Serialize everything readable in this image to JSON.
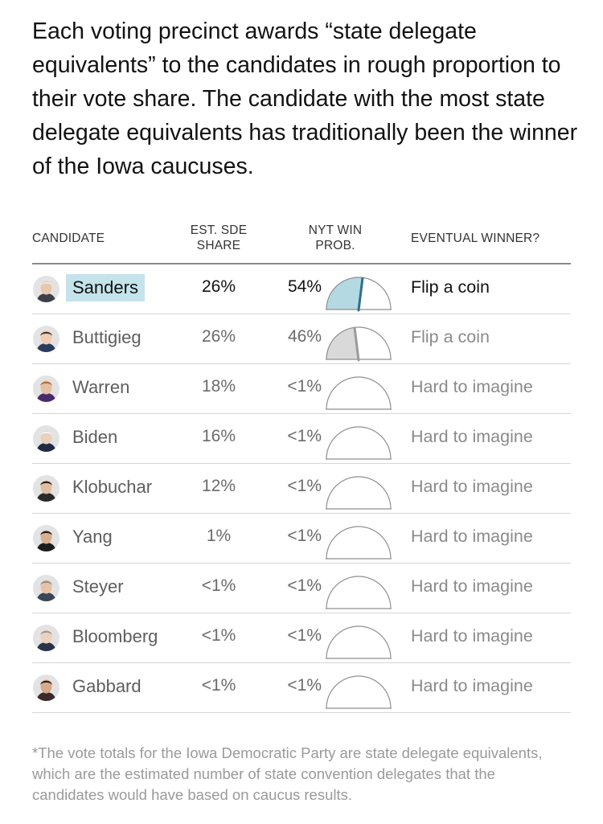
{
  "intro": "Each voting precinct awards “state delegate equivalents” to the candidates in rough proportion to their vote share. The candidate with the most state delegate equivalents has traditionally been the winner of the Iowa caucuses.",
  "headers": {
    "candidate": "CANDIDATE",
    "sde_line1": "EST. SDE",
    "sde_line2": "SHARE",
    "prob_line1": "NYT WIN",
    "prob_line2": "PROB.",
    "winner": "EVENTUAL WINNER?"
  },
  "colors": {
    "leader_highlight": "#c4e3eb",
    "leader_gauge_fill": "#b4d9e3",
    "leader_needle": "#2f6f86",
    "second_gauge_fill": "#d9d9d9",
    "second_needle": "#9a9a9a"
  },
  "chart_data": {
    "type": "table",
    "columns": [
      "CANDIDATE",
      "EST. SDE SHARE",
      "NYT WIN PROB.",
      "EVENTUAL WINNER?"
    ],
    "rows": [
      {
        "candidate": "Sanders",
        "avatar": "sanders-avatar",
        "sde": "26%",
        "prob": "54%",
        "prob_value": 0.54,
        "winner": "Flip a coin"
      },
      {
        "candidate": "Buttigieg",
        "avatar": "buttigieg-avatar",
        "sde": "26%",
        "prob": "46%",
        "prob_value": 0.46,
        "winner": "Flip a coin"
      },
      {
        "candidate": "Warren",
        "avatar": "warren-avatar",
        "sde": "18%",
        "prob": "<1%",
        "prob_value": 0.0,
        "winner": "Hard to imagine"
      },
      {
        "candidate": "Biden",
        "avatar": "biden-avatar",
        "sde": "16%",
        "prob": "<1%",
        "prob_value": 0.0,
        "winner": "Hard to imagine"
      },
      {
        "candidate": "Klobuchar",
        "avatar": "klobuchar-avatar",
        "sde": "12%",
        "prob": "<1%",
        "prob_value": 0.0,
        "winner": "Hard to imagine"
      },
      {
        "candidate": "Yang",
        "avatar": "yang-avatar",
        "sde": "1%",
        "prob": "<1%",
        "prob_value": 0.0,
        "winner": "Hard to imagine"
      },
      {
        "candidate": "Steyer",
        "avatar": "steyer-avatar",
        "sde": "<1%",
        "prob": "<1%",
        "prob_value": 0.0,
        "winner": "Hard to imagine"
      },
      {
        "candidate": "Bloomberg",
        "avatar": "bloomberg-avatar",
        "sde": "<1%",
        "prob": "<1%",
        "prob_value": 0.0,
        "winner": "Hard to imagine"
      },
      {
        "candidate": "Gabbard",
        "avatar": "gabbard-avatar",
        "sde": "<1%",
        "prob": "<1%",
        "prob_value": 0.0,
        "winner": "Hard to imagine"
      }
    ]
  },
  "footnote": "*The vote totals for the Iowa Democratic Party are state delegate equivalents, which are the estimated number of state convention delegates that the candidates would have based on caucus results."
}
